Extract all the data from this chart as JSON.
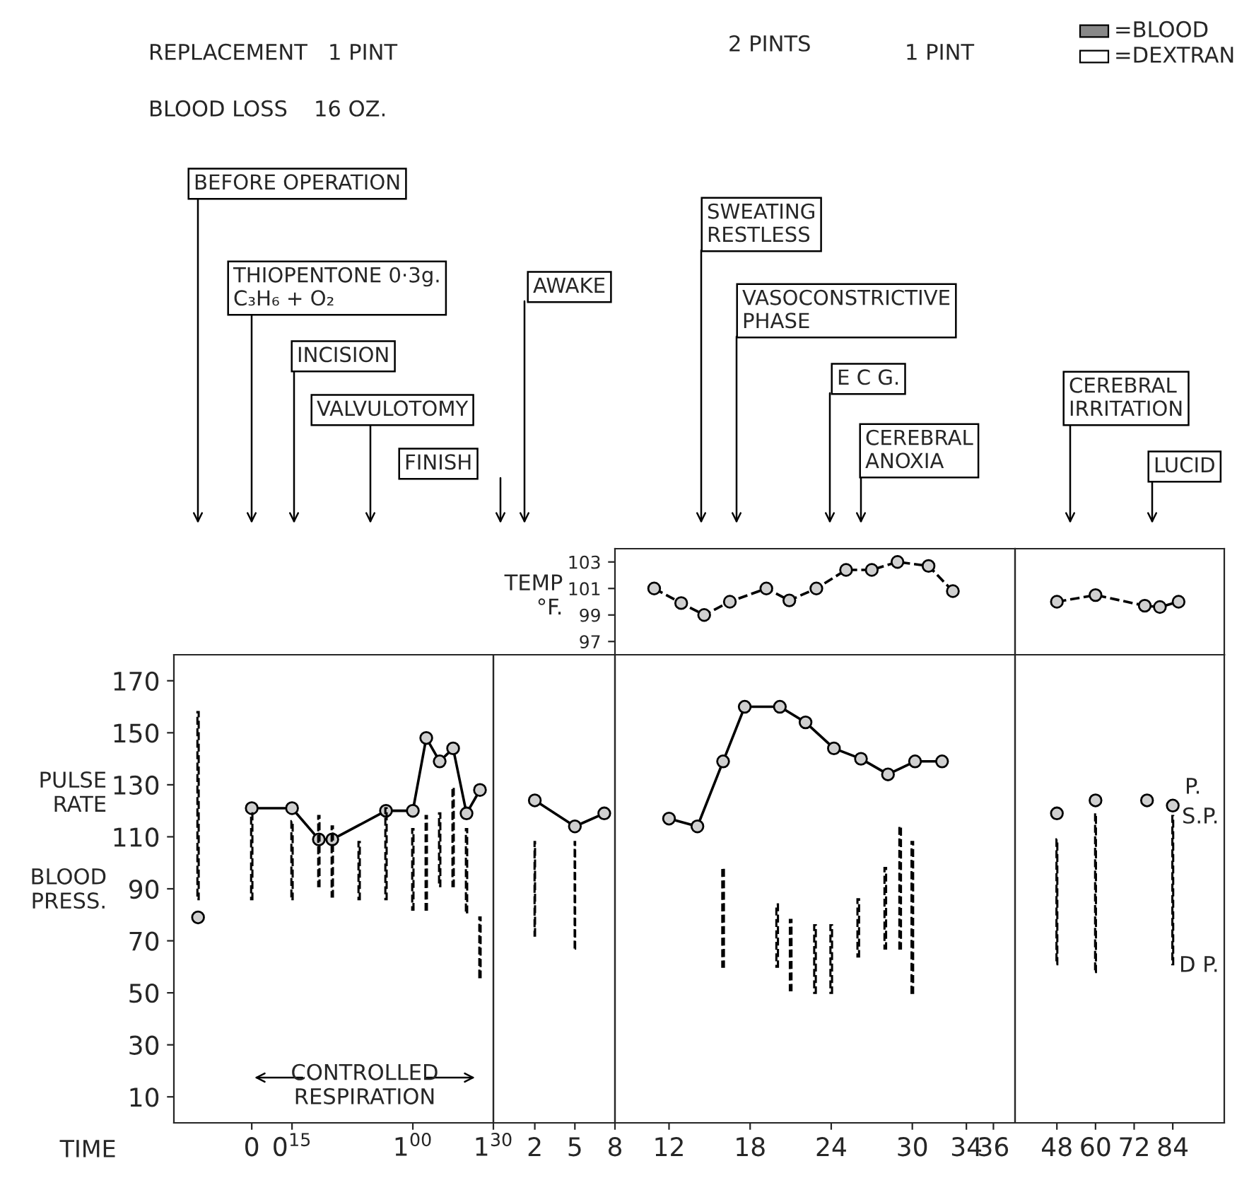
{
  "chart_data": [
    {
      "type": "line",
      "xlabel": "TIME",
      "ylabel": "PULSE\nRATE\n\n\nBLOOD\nPRESS.",
      "ylim": [
        0,
        180
      ],
      "yticks": [
        10,
        30,
        50,
        70,
        90,
        110,
        130,
        150,
        170
      ],
      "categories": [
        null,
        null,
        null,
        null,
        null,
        "0",
        null,
        null,
        "0$^{15}$",
        null,
        null,
        null,
        null,
        null,
        null,
        null,
        null,
        "1$^{00}$",
        null,
        null,
        null,
        null,
        null,
        "1$^{30}$"
      ],
      "series": [
        {
          "color": "#000000",
          "marker": "circle",
          "line_style": "solid",
          "values": [
            null,
            null,
            null,
            null,
            null,
            121,
            null,
            null,
            121,
            null,
            109,
            109,
            null,
            null,
            null,
            120,
            null,
            120,
            148,
            139,
            144,
            119,
            128,
            null
          ]
        },
        {
          "type": "scatter",
          "color": "#000000",
          "marker": "circle",
          "values": [
            null,
            79,
            null,
            null,
            null,
            null,
            null,
            null,
            null,
            null,
            null,
            null,
            null,
            null,
            null,
            null,
            null,
            null,
            null,
            null,
            null,
            null,
            null,
            null
          ]
        },
        {
          "type": "bar",
          "color": "#000000",
          "line_style": "dashed",
          "base": [
            null,
            86,
            null,
            null,
            null,
            86,
            null,
            null,
            86,
            null,
            91,
            87,
            null,
            86,
            null,
            86,
            null,
            82,
            82,
            91,
            91,
            81,
            56,
            null
          ],
          "values": [
            null,
            72,
            null,
            null,
            null,
            33,
            null,
            null,
            30,
            null,
            27,
            27,
            null,
            22,
            null,
            35,
            null,
            31,
            36,
            28,
            38,
            32,
            23,
            null
          ]
        }
      ],
      "annotations": [
        "REPLACEMENT",
        "1 PINT",
        "BLOOD LOSS",
        "16 OZ.",
        "2 PINTS",
        "1 PINT",
        "=BLOOD",
        "=DEXTRAN",
        "BEFORE OPERATION",
        "THIOPENTONE 0·3g.\nC₃H₆ + O₂",
        "INCISION",
        "VALVULOTOMY",
        "FINISH",
        "CONTROLLED\nRESPIRATION"
      ]
    },
    {
      "type": "line",
      "tick_labels": "x",
      "xlim": [
        -1.1,
        8
      ],
      "xticks": [
        2,
        5,
        8
      ],
      "ylim": [
        0,
        180
      ],
      "series": [
        {
          "color": "#000000",
          "marker": "circle",
          "line_style": "solid",
          "x": [
            2,
            5,
            7.2
          ],
          "values": [
            124,
            114,
            119
          ]
        },
        {
          "type": "bar",
          "color": "#000000",
          "line_style": "dashed",
          "x": [
            2,
            5
          ],
          "base": [
            72,
            67
          ],
          "values": [
            36,
            41
          ]
        }
      ],
      "annotations": [
        "AWAKE"
      ]
    },
    {
      "type": "line",
      "tick_labels": "x",
      "xlim": [
        8,
        37.6
      ],
      "xticks": [
        12,
        18,
        24,
        30,
        34,
        36
      ],
      "ylim": [
        0,
        180
      ],
      "series": [
        {
          "color": "#000000",
          "marker": "circle",
          "line_style": "solid",
          "x": [
            12,
            14.1,
            16,
            17.6,
            20.2,
            22.1,
            24.2,
            26.2,
            28.2,
            30.2,
            32.2
          ],
          "values": [
            117,
            114,
            139,
            160,
            160,
            154,
            144,
            140,
            134,
            139,
            139
          ]
        },
        {
          "type": "bar",
          "color": "#000000",
          "line_style": "dashed",
          "x": [
            16,
            20,
            21,
            22.8,
            24,
            26,
            28,
            29.1,
            30
          ],
          "base": [
            60,
            60,
            51,
            50,
            50,
            64,
            67,
            67,
            50
          ],
          "values": [
            38,
            24,
            27,
            26,
            26,
            22,
            31,
            47,
            58
          ]
        }
      ]
    },
    {
      "type": "line",
      "tick_labels": "x",
      "xlim": [
        35,
        100
      ],
      "xticks": [
        48,
        60,
        72,
        84
      ],
      "ylim": [
        0,
        180
      ],
      "series": [
        {
          "type": "scatter",
          "color": "#000000",
          "marker": "circle",
          "x": [
            48,
            60,
            76,
            84
          ],
          "values": [
            119,
            124,
            124,
            122
          ]
        },
        {
          "type": "bar",
          "color": "#000000",
          "line_style": "dashed",
          "x": [
            48,
            60,
            84
          ],
          "base": [
            61,
            58,
            61
          ],
          "values": [
            48,
            61,
            57
          ]
        }
      ],
      "annotations": [
        "P.",
        "S.P.",
        "D P."
      ]
    },
    {
      "type": "line",
      "tick_labels": "y",
      "ylabel": "TEMP\n°F.",
      "xlim": [
        8,
        37.6
      ],
      "ylim": [
        96,
        104
      ],
      "yticks": [
        97,
        99,
        101,
        103
      ],
      "series": [
        {
          "color": "#000000",
          "marker": "circle",
          "line_style": "dashed",
          "x": [
            10.9,
            12.9,
            14.6,
            16.5,
            19.2,
            20.9,
            22.9,
            25.1,
            27,
            28.9,
            31.2,
            33
          ],
          "values": [
            101,
            99.9,
            99,
            100,
            101,
            100.1,
            101,
            102.4,
            102.4,
            103,
            102.7,
            100.8
          ]
        }
      ],
      "annotations": [
        "SWEATING\nRESTLESS",
        "VASOCONSTRICTIVE\nPHASE",
        "E C G.",
        "CEREBRAL\nANOXIA"
      ]
    },
    {
      "type": "line",
      "tick_labels": false,
      "xlim": [
        35,
        100
      ],
      "ylim": [
        96,
        104
      ],
      "series": [
        {
          "color": "#000000",
          "marker": "circle",
          "line_style": "dashed",
          "x": [
            48,
            60,
            75.3,
            80,
            85.8
          ],
          "values": [
            100,
            100.5,
            99.7,
            99.6,
            100
          ]
        }
      ],
      "annotations": [
        "CEREBRAL\nIRRITATION",
        "LUCID"
      ]
    }
  ]
}
